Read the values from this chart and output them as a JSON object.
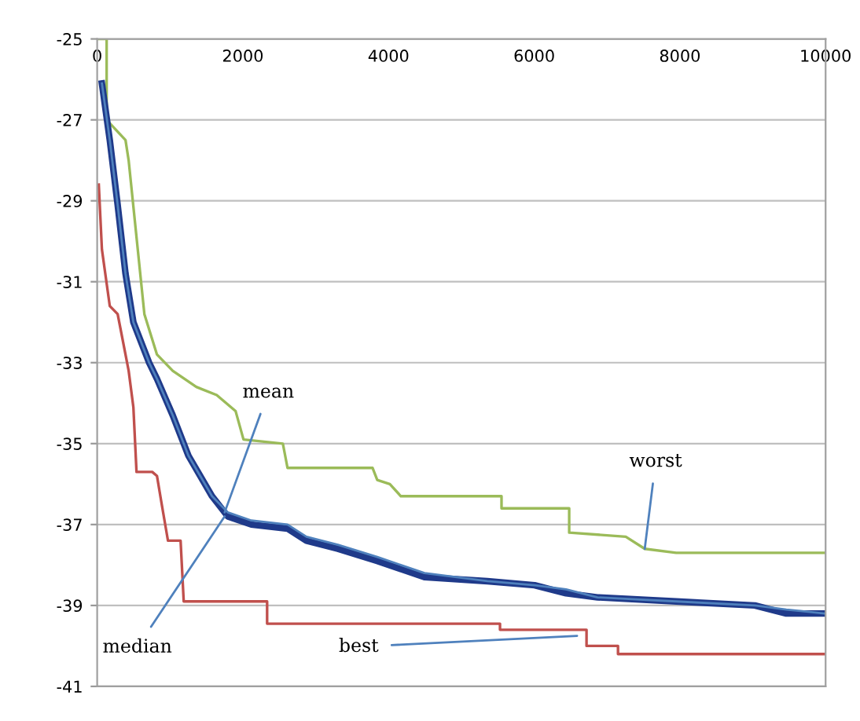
{
  "chart_data": {
    "type": "line",
    "xlim": [
      0,
      10000
    ],
    "xticks": [
      0,
      2000,
      4000,
      6000,
      8000,
      10000
    ],
    "ylim": [
      -41,
      -25
    ],
    "yticks": [
      -41,
      -39,
      -37,
      -35,
      -33,
      -31,
      -29,
      -27,
      -25
    ],
    "grid": "y",
    "legend": false,
    "marker": "none",
    "line_style": "solid",
    "series": [
      {
        "color": "#9bbb59",
        "x": [
          0,
          130,
          130,
          389,
          432,
          648,
          821,
          1037,
          1361,
          1641,
          1901,
          2009,
          2549,
          2613,
          3780,
          3845,
          4018,
          4169,
          5551,
          5551,
          6480,
          6480,
          7257,
          7517,
          7949,
          10000
        ],
        "values": [
          -25,
          -25,
          -27,
          -27.5,
          -28,
          -31.8,
          -32.8,
          -33.2,
          -33.6,
          -33.8,
          -34.2,
          -34.9,
          -35,
          -35.6,
          -35.6,
          -35.9,
          -36,
          -36.3,
          -36.3,
          -36.6,
          -36.6,
          -37.2,
          -37.3,
          -37.6,
          -37.7,
          -37.7
        ]
      },
      {
        "color": "#1f3a8a",
        "x": [
          65,
          173,
          281,
          389,
          497,
          713,
          821,
          1037,
          1253,
          1577,
          1793,
          2117,
          2613,
          2873,
          3305,
          3845,
          4493,
          5357,
          6005,
          6437,
          6869,
          7949,
          9029,
          9461,
          10000
        ],
        "values": [
          -26.1,
          -27.5,
          -29.1,
          -30.8,
          -32,
          -33,
          -33.4,
          -34.3,
          -35.3,
          -36.3,
          -36.8,
          -37,
          -37.1,
          -37.4,
          -37.6,
          -37.9,
          -38.3,
          -38.4,
          -38.5,
          -38.7,
          -38.8,
          -38.9,
          -39,
          -39.2,
          -39.2
        ]
      },
      {
        "color": "#4f81bd",
        "x": [
          65,
          173,
          281,
          389,
          497,
          713,
          821,
          1037,
          1253,
          1577,
          1793,
          2117,
          2613,
          2873,
          3305,
          3845,
          4493,
          5357,
          6005,
          6437,
          6869,
          7949,
          9029,
          9461,
          10000
        ],
        "values": [
          -26.1,
          -27.5,
          -29.1,
          -30.8,
          -32,
          -33,
          -33.4,
          -34.3,
          -35.3,
          -36.3,
          -36.7,
          -36.9,
          -37,
          -37.3,
          -37.5,
          -37.8,
          -38.2,
          -38.4,
          -38.5,
          -38.6,
          -38.8,
          -38.9,
          -39,
          -39.1,
          -39.2
        ]
      },
      {
        "color": "#c0504d",
        "x": [
          22,
          65,
          173,
          281,
          346,
          432,
          497,
          540,
          756,
          821,
          886,
          972,
          1145,
          1188,
          2333,
          2333,
          5530,
          5530,
          6718,
          6718,
          7150,
          7150,
          10000
        ],
        "values": [
          -28.6,
          -30.2,
          -31.6,
          -31.8,
          -32.4,
          -33.2,
          -34.1,
          -35.7,
          -35.7,
          -35.8,
          -36.5,
          -37.4,
          -37.4,
          -38.9,
          -38.9,
          -39.45,
          -39.45,
          -39.6,
          -39.6,
          -40,
          -40,
          -40.2,
          -40.2
        ]
      }
    ],
    "annotations": [
      {
        "text": "mean",
        "x": 1750,
        "y": -36.7
      },
      {
        "text": "median",
        "x": 1750,
        "y": -36.8
      },
      {
        "text": "best",
        "x": 6588,
        "y": -39.75
      },
      {
        "text": "worst",
        "x": 7517,
        "y": -37.6
      }
    ]
  }
}
